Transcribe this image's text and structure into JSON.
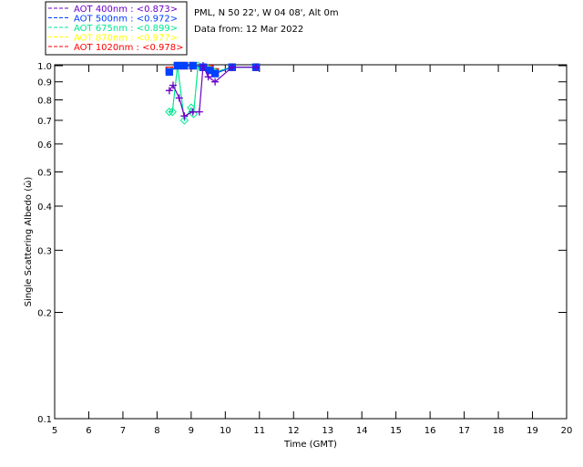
{
  "header": {
    "site": "PML, N 50 22', W 04 08', Alt 0m",
    "date": "Data from: 12 Mar 2022"
  },
  "chart_data": {
    "type": "scatter",
    "xlabel": "Time (GMT)",
    "ylabel": "Single Scattering Albedo (ω̄)",
    "xlim": [
      5,
      20
    ],
    "ylim": [
      0.1,
      1.0
    ],
    "yscale": "log",
    "xticks": [
      5,
      6,
      7,
      8,
      9,
      10,
      11,
      12,
      13,
      14,
      15,
      16,
      17,
      18,
      19,
      20
    ],
    "yticks": [
      1.0,
      0.9,
      0.8,
      0.7,
      0.6,
      0.5,
      0.4,
      0.3,
      0.2,
      0.1
    ],
    "ytick_labels": [
      "1.0",
      "0.9",
      "0.8",
      "0.7",
      "0.6",
      "0.5",
      "0.4",
      "0.3",
      "0.2",
      "0.1"
    ],
    "legend_position": "top-left outside",
    "series": [
      {
        "name": "AOT  400nm : <0.873>",
        "color": "#6a00c8",
        "marker": "plus",
        "x": [
          8.36,
          8.47,
          8.65,
          8.8,
          9.05,
          9.24,
          9.35,
          9.5,
          9.7,
          10.2,
          10.9
        ],
        "y": [
          0.85,
          0.88,
          0.81,
          0.72,
          0.74,
          0.74,
          1.0,
          0.93,
          0.9,
          0.99,
          0.99
        ]
      },
      {
        "name": "AOT  500nm : <0.972>",
        "color": "#0040ff",
        "marker": "square",
        "x": [
          8.36,
          8.6,
          8.8,
          9.05,
          9.35,
          9.55,
          9.7,
          10.2,
          10.9
        ],
        "y": [
          0.96,
          1.0,
          1.0,
          1.0,
          0.99,
          0.97,
          0.95,
          0.99,
          0.99
        ]
      },
      {
        "name": "AOT  675nm : <0.899>",
        "color": "#00e890",
        "marker": "diamond",
        "x": [
          8.36,
          8.45,
          8.6,
          8.8,
          9.0,
          9.07,
          9.2,
          9.5,
          9.7,
          10.2,
          10.9
        ],
        "y": [
          0.74,
          0.74,
          1.0,
          0.7,
          0.76,
          0.73,
          1.0,
          0.98,
          0.96,
          0.99,
          0.99
        ]
      },
      {
        "name": "AOT  870nm : <0.977>",
        "color": "#ffff00",
        "marker": "triangle",
        "x": [
          8.36,
          8.6,
          8.8,
          9.05,
          9.35,
          9.55,
          9.7,
          10.2,
          10.9
        ],
        "y": [
          0.97,
          1.0,
          1.0,
          1.0,
          0.99,
          0.98,
          0.96,
          0.99,
          0.99
        ]
      },
      {
        "name": "AOT 1020nm : <0.978>",
        "color": "#ff0000",
        "marker": "square",
        "x": [
          8.36,
          8.6,
          8.8,
          9.05,
          9.35,
          9.55,
          9.7,
          10.2,
          10.9
        ],
        "y": [
          0.97,
          1.0,
          1.0,
          1.0,
          0.99,
          0.98,
          0.96,
          0.99,
          0.99
        ]
      }
    ]
  }
}
